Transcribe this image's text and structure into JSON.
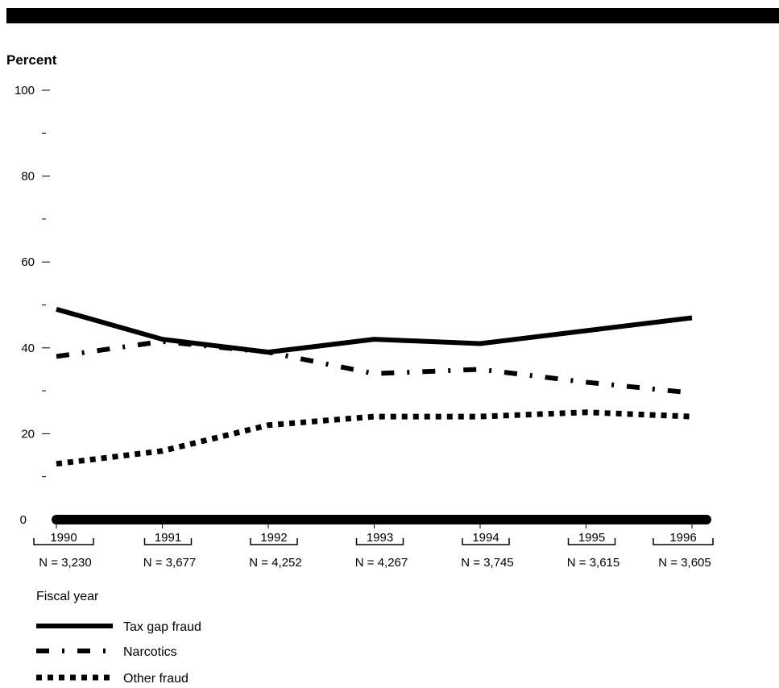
{
  "chart_data": {
    "type": "line",
    "ylabel": "Percent",
    "xlabel": "Fiscal year",
    "ylim": [
      0,
      100
    ],
    "yticks": [
      0,
      20,
      40,
      60,
      80,
      100
    ],
    "categories": [
      "1990",
      "1991",
      "1992",
      "1993",
      "1994",
      "1995",
      "1996"
    ],
    "sample_sizes": [
      "N = 3,230",
      "N = 3,677",
      "N = 4,252",
      "N = 4,267",
      "N = 3,745",
      "N = 3,615",
      "N = 3,605"
    ],
    "series": [
      {
        "name": "Tax gap fraud",
        "style": "solid",
        "values": [
          49,
          42,
          39,
          42,
          41,
          44,
          47
        ]
      },
      {
        "name": "Narcotics",
        "style": "dash-dot",
        "values": [
          38,
          41.5,
          39,
          34,
          35,
          32,
          29.5
        ]
      },
      {
        "name": "Other fraud",
        "style": "dotted",
        "values": [
          13,
          16,
          22,
          24,
          24,
          25,
          24
        ]
      }
    ],
    "grid": false,
    "legend_position": "bottom-left"
  }
}
